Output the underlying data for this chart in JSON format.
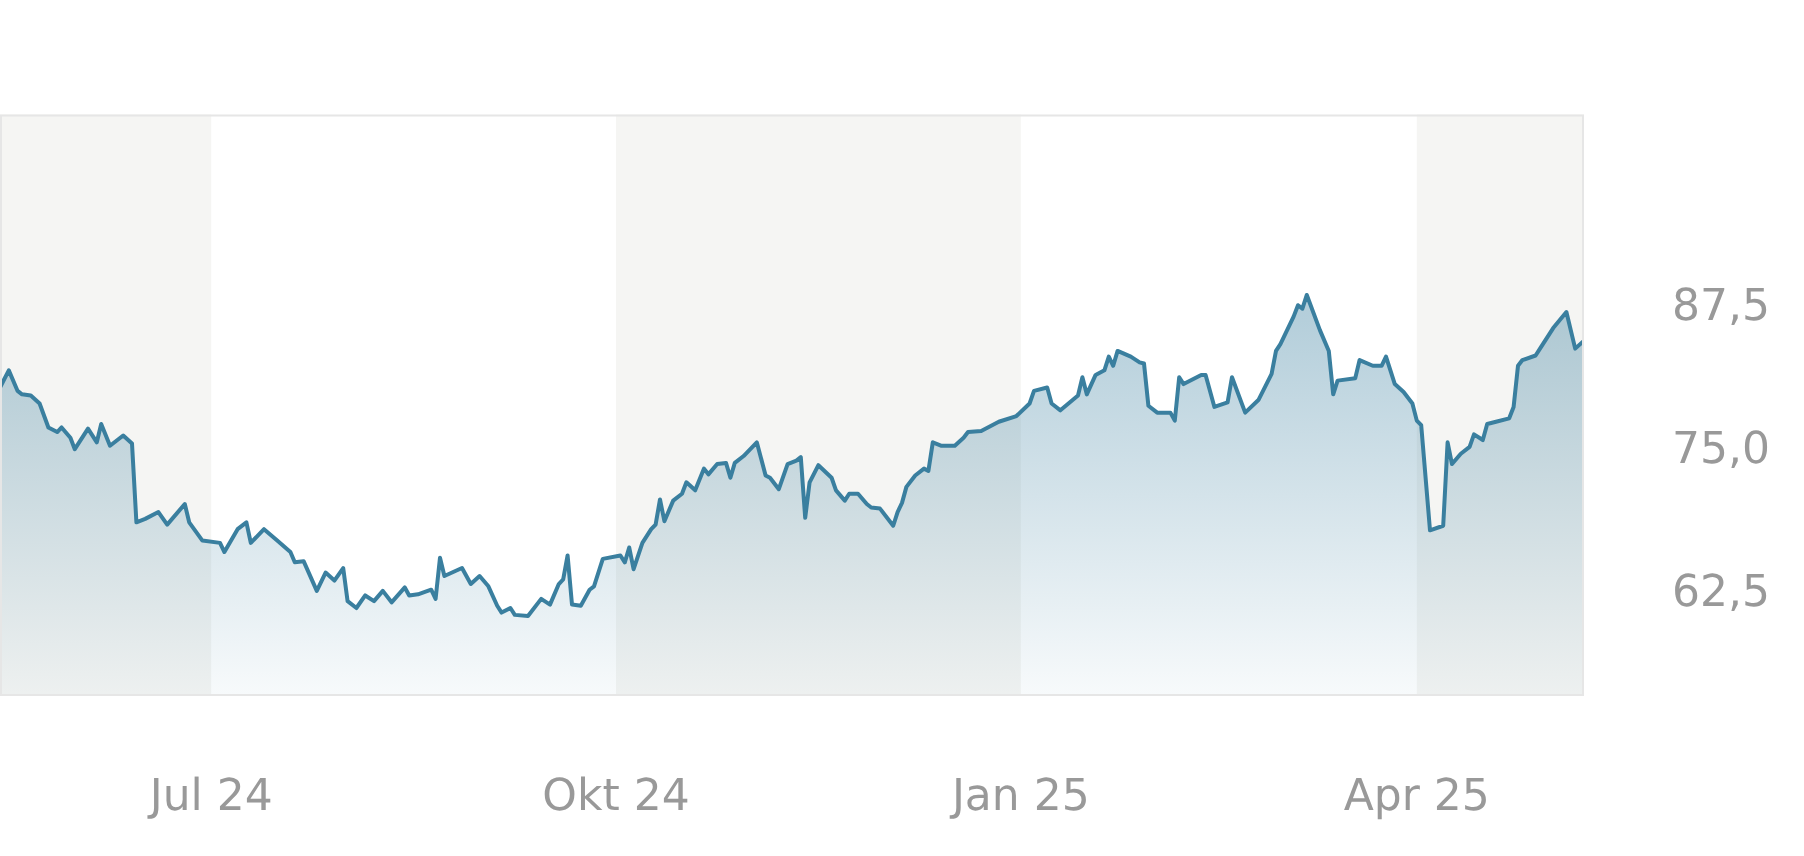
{
  "chart_data": {
    "type": "area",
    "x": [
      "2024-05-14",
      "2024-05-16",
      "2024-05-18",
      "2024-05-19",
      "2024-05-21",
      "2024-05-23",
      "2024-05-25",
      "2024-05-27",
      "2024-05-28",
      "2024-05-30",
      "2024-05-31",
      "2024-06-03",
      "2024-06-05",
      "2024-06-06",
      "2024-06-08",
      "2024-06-11",
      "2024-06-13",
      "2024-06-14",
      "2024-06-16",
      "2024-06-19",
      "2024-06-21",
      "2024-06-25",
      "2024-06-26",
      "2024-06-29",
      "2024-07-03",
      "2024-07-04",
      "2024-07-07",
      "2024-07-09",
      "2024-07-10",
      "2024-07-13",
      "2024-07-16",
      "2024-07-19",
      "2024-07-20",
      "2024-07-22",
      "2024-07-25",
      "2024-07-27",
      "2024-07-29",
      "2024-07-31",
      "2024-08-01",
      "2024-08-03",
      "2024-08-05",
      "2024-08-07",
      "2024-08-09",
      "2024-08-11",
      "2024-08-14",
      "2024-08-15",
      "2024-08-17",
      "2024-08-20",
      "2024-08-21",
      "2024-08-22",
      "2024-08-23",
      "2024-08-27",
      "2024-08-29",
      "2024-08-31",
      "2024-09-02",
      "2024-09-04",
      "2024-09-05",
      "2024-09-07",
      "2024-09-08",
      "2024-09-11",
      "2024-09-14",
      "2024-09-16",
      "2024-09-18",
      "2024-09-19",
      "2024-09-20",
      "2024-09-21",
      "2024-09-23",
      "2024-09-25",
      "2024-09-26",
      "2024-09-28",
      "2024-10-02",
      "2024-10-03",
      "2024-10-04",
      "2024-10-05",
      "2024-10-07",
      "2024-10-09",
      "2024-10-10",
      "2024-10-11",
      "2024-10-12",
      "2024-10-14",
      "2024-10-16",
      "2024-10-17",
      "2024-10-19",
      "2024-10-21",
      "2024-10-22",
      "2024-10-24",
      "2024-10-26",
      "2024-10-27",
      "2024-10-28",
      "2024-10-30",
      "2024-11-02",
      "2024-11-04",
      "2024-11-05",
      "2024-11-07",
      "2024-11-09",
      "2024-11-11",
      "2024-11-12",
      "2024-11-13",
      "2024-11-14",
      "2024-11-16",
      "2024-11-19",
      "2024-11-20",
      "2024-11-22",
      "2024-11-23",
      "2024-11-25",
      "2024-11-27",
      "2024-11-28",
      "2024-11-30",
      "2024-12-03",
      "2024-12-04",
      "2024-12-05",
      "2024-12-06",
      "2024-12-08",
      "2024-12-10",
      "2024-12-11",
      "2024-12-12",
      "2024-12-14",
      "2024-12-17",
      "2024-12-19",
      "2024-12-20",
      "2024-12-23",
      "2024-12-27",
      "2024-12-31",
      "2025-01-03",
      "2025-01-04",
      "2025-01-07",
      "2025-01-08",
      "2025-01-10",
      "2025-01-14",
      "2025-01-15",
      "2025-01-16",
      "2025-01-18",
      "2025-01-20",
      "2025-01-21",
      "2025-01-22",
      "2025-01-23",
      "2025-01-26",
      "2025-01-28",
      "2025-01-29",
      "2025-01-30",
      "2025-02-01",
      "2025-02-04",
      "2025-02-05",
      "2025-02-06",
      "2025-02-07",
      "2025-02-11",
      "2025-02-12",
      "2025-02-14",
      "2025-02-17",
      "2025-02-18",
      "2025-02-21",
      "2025-02-24",
      "2025-02-27",
      "2025-02-28",
      "2025-03-01",
      "2025-03-04",
      "2025-03-05",
      "2025-03-06",
      "2025-03-07",
      "2025-03-10",
      "2025-03-12",
      "2025-03-13",
      "2025-03-14",
      "2025-03-18",
      "2025-03-19",
      "2025-03-22",
      "2025-03-24",
      "2025-03-25",
      "2025-03-27",
      "2025-03-29",
      "2025-03-31",
      "2025-04-01",
      "2025-04-02",
      "2025-04-04",
      "2025-04-07",
      "2025-04-08",
      "2025-04-09",
      "2025-04-11",
      "2025-04-13",
      "2025-04-14",
      "2025-04-16",
      "2025-04-17",
      "2025-04-19",
      "2025-04-22",
      "2025-04-23",
      "2025-04-24",
      "2025-04-25",
      "2025-04-28",
      "2025-04-29",
      "2025-05-02",
      "2025-05-05",
      "2025-05-07",
      "2025-05-09"
    ],
    "series": [
      {
        "color": "#3a7f9f",
        "values": [
          80.6,
          82.1,
          80.3,
          80.0,
          79.9,
          79.2,
          77.1,
          76.7,
          77.1,
          76.2,
          75.2,
          77.0,
          75.8,
          77.4,
          75.5,
          76.4,
          75.7,
          68.8,
          69.1,
          69.7,
          68.6,
          70.4,
          68.8,
          67.2,
          67.0,
          66.2,
          68.2,
          68.8,
          67.0,
          68.2,
          67.2,
          66.2,
          65.3,
          65.4,
          62.8,
          64.4,
          63.7,
          64.8,
          61.9,
          61.3,
          62.4,
          61.9,
          62.8,
          61.8,
          63.1,
          62.4,
          62.5,
          62.9,
          62.1,
          65.7,
          64.1,
          64.8,
          63.4,
          64.1,
          63.2,
          61.5,
          60.9,
          61.3,
          60.7,
          60.6,
          62.1,
          61.6,
          63.4,
          63.8,
          65.9,
          61.6,
          61.5,
          62.9,
          63.2,
          65.6,
          65.9,
          65.3,
          66.6,
          64.7,
          67.0,
          68.2,
          68.6,
          70.8,
          68.9,
          70.7,
          71.3,
          72.3,
          71.6,
          73.5,
          73.0,
          73.9,
          74.0,
          72.7,
          74.0,
          74.6,
          75.8,
          72.9,
          72.7,
          71.7,
          73.9,
          74.2,
          74.5,
          69.2,
          72.3,
          73.8,
          72.7,
          71.6,
          70.7,
          71.3,
          71.3,
          70.4,
          70.1,
          70.0,
          68.5,
          69.7,
          70.5,
          71.9,
          72.9,
          73.5,
          73.3,
          75.8,
          75.5,
          75.5,
          76.2,
          76.7,
          76.8,
          77.6,
          78.1,
          79.2,
          80.3,
          80.6,
          79.2,
          78.6,
          79.9,
          81.5,
          80.0,
          81.7,
          82.1,
          83.3,
          82.5,
          83.8,
          83.3,
          82.8,
          82.7,
          79.0,
          78.4,
          78.4,
          77.7,
          81.5,
          80.9,
          81.7,
          81.7,
          78.9,
          79.3,
          81.5,
          78.4,
          79.5,
          81.8,
          83.8,
          84.4,
          86.8,
          87.8,
          87.5,
          88.7,
          85.6,
          83.8,
          80.0,
          81.2,
          81.4,
          83.0,
          82.5,
          82.5,
          83.3,
          80.9,
          80.2,
          79.2,
          77.7,
          77.3,
          68.1,
          68.5,
          75.8,
          73.9,
          74.8,
          75.4,
          76.5,
          76.0,
          77.4,
          77.6,
          77.9,
          78.9,
          82.5,
          83.0,
          83.4,
          84.0,
          85.8,
          87.2,
          84.0,
          84.7
        ]
      }
    ],
    "xlim": [
      "2024-05-14",
      "2025-05-09"
    ],
    "xticks": [
      {
        "value": "2024-07-01",
        "label": "Jul 24"
      },
      {
        "value": "2024-10-01",
        "label": "Okt 24"
      },
      {
        "value": "2025-01-01",
        "label": "Jan 25"
      },
      {
        "value": "2025-04-01",
        "label": "Apr 25"
      }
    ],
    "ylim": [
      53.6,
      104.5
    ],
    "yticks": [
      {
        "value": 62.5,
        "label": "62,5"
      },
      {
        "value": 75,
        "label": "75,0"
      },
      {
        "value": 87.5,
        "label": "87,5"
      }
    ],
    "bands": [
      {
        "axis": "x",
        "from": "2024-05-14",
        "to": "2024-07-01",
        "color": "#f5f5f3"
      },
      {
        "axis": "x",
        "from": "2024-10-01",
        "to": "2025-01-01",
        "color": "#f5f5f3"
      },
      {
        "axis": "x",
        "from": "2025-04-01",
        "to": "2025-05-09",
        "color": "#f5f5f3"
      }
    ]
  }
}
